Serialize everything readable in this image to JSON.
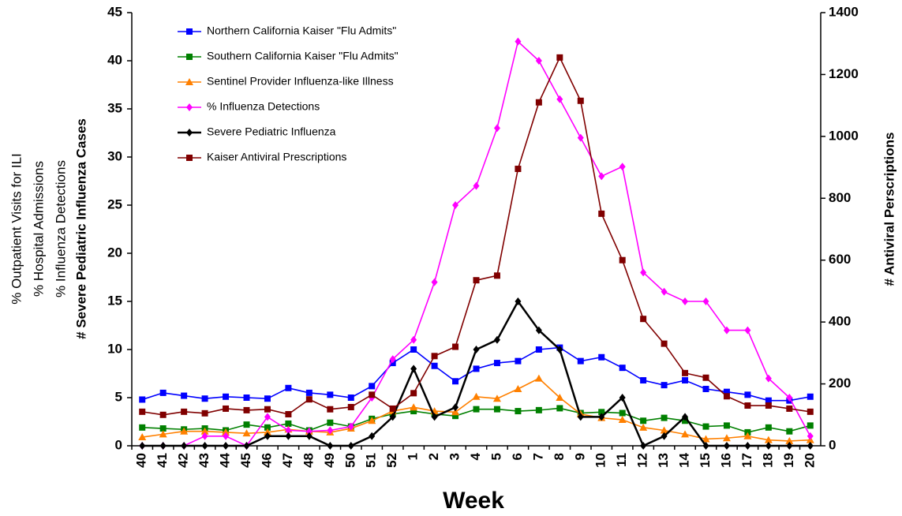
{
  "chart_data": {
    "type": "line",
    "xlabel": "Week",
    "ylabel": [
      "% Outpatient Visits for ILI",
      "% Hospital Admissions",
      "% Influenza Detections",
      "# Severe Pediatric Influenza Cases"
    ],
    "y2label": "# Antiviral Perscriptions",
    "categories": [
      "40",
      "41",
      "42",
      "43",
      "44",
      "45",
      "46",
      "47",
      "48",
      "49",
      "50",
      "51",
      "52",
      "1",
      "2",
      "3",
      "4",
      "5",
      "6",
      "7",
      "8",
      "9",
      "10",
      "11",
      "12",
      "13",
      "14",
      "15",
      "16",
      "17",
      "18",
      "19",
      "20"
    ],
    "ylim": [
      0,
      45
    ],
    "yticks": [
      0,
      5,
      10,
      15,
      20,
      25,
      30,
      35,
      40,
      45
    ],
    "y2lim": [
      0,
      1400
    ],
    "y2ticks": [
      0,
      200,
      400,
      600,
      800,
      1000,
      1200,
      1400
    ],
    "grid": false,
    "legend": "upper left",
    "series": [
      {
        "name": "Northern California Kaiser \"Flu Admits\"",
        "color": "#0000ff",
        "marker": "square",
        "values": [
          4.8,
          5.5,
          5.2,
          4.9,
          5.1,
          5.0,
          4.9,
          6.0,
          5.5,
          5.3,
          5.0,
          6.2,
          8.6,
          10.0,
          8.3,
          6.7,
          8.0,
          8.6,
          8.8,
          10.0,
          10.2,
          8.8,
          9.2,
          8.1,
          6.8,
          6.3,
          6.8,
          5.9,
          5.6,
          5.3,
          4.7,
          4.7,
          5.1
        ]
      },
      {
        "name": "Southern California Kaiser \"Flu Admits\"",
        "color": "#008000",
        "marker": "square",
        "values": [
          1.9,
          1.8,
          1.7,
          1.8,
          1.6,
          2.2,
          1.9,
          2.3,
          1.6,
          2.4,
          2.0,
          2.8,
          3.3,
          3.6,
          3.3,
          3.1,
          3.8,
          3.8,
          3.6,
          3.7,
          3.9,
          3.4,
          3.5,
          3.4,
          2.6,
          2.9,
          2.6,
          2.0,
          2.1,
          1.4,
          1.9,
          1.5,
          2.1
        ]
      },
      {
        "name": "Sentinel Provider Influenza-like Illness",
        "color": "#ff8000",
        "marker": "triangle",
        "values": [
          0.9,
          1.2,
          1.5,
          1.5,
          1.4,
          1.3,
          1.4,
          1.7,
          1.5,
          1.4,
          1.8,
          2.6,
          3.6,
          4.0,
          3.6,
          3.5,
          5.1,
          4.9,
          5.9,
          7.0,
          5.0,
          3.3,
          2.9,
          2.7,
          1.9,
          1.6,
          1.2,
          0.7,
          0.8,
          1.0,
          0.6,
          0.5,
          0.6
        ]
      },
      {
        "name": "% Influenza Detections",
        "color": "#ff00ff",
        "marker": "diamond",
        "values": [
          0,
          0,
          0,
          1.0,
          1.0,
          0,
          3.0,
          1.6,
          1.5,
          1.6,
          2.0,
          5.0,
          9.0,
          11.0,
          17.0,
          25.0,
          27.0,
          33.0,
          42.0,
          40.0,
          36.0,
          32.0,
          28.0,
          29.0,
          18.0,
          16.0,
          15.0,
          15.0,
          12.0,
          12.0,
          7.0,
          5.0,
          1.0
        ]
      },
      {
        "name": "Severe Pediatric Influenza",
        "color": "#000000",
        "marker": "diamond",
        "values": [
          0,
          0,
          0,
          0,
          0,
          0,
          1,
          1,
          1,
          0,
          0,
          1,
          3,
          8,
          3,
          4,
          10,
          11,
          15,
          12,
          10,
          3,
          3,
          5,
          0,
          1,
          3,
          0,
          0,
          0,
          0,
          0,
          0
        ]
      },
      {
        "name": "Kaiser Antiviral Prescriptions",
        "color": "#800000",
        "marker": "square",
        "axis": "y2",
        "values": [
          110,
          100,
          110,
          105,
          120,
          115,
          118,
          102,
          150,
          118,
          125,
          165,
          120,
          170,
          290,
          320,
          535,
          550,
          895,
          1110,
          1255,
          1115,
          750,
          600,
          410,
          330,
          235,
          220,
          160,
          130,
          130,
          120,
          110
        ]
      }
    ]
  }
}
